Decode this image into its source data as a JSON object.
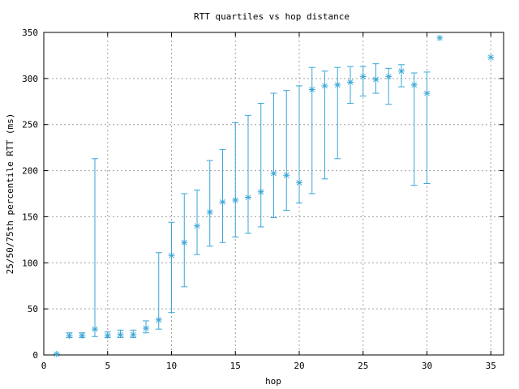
{
  "chart_data": {
    "type": "scatter",
    "title": "RTT quartiles vs hop distance",
    "xlabel": "hop",
    "ylabel": "25/50/75th percentile RTT (ms)",
    "xlim": [
      0,
      36
    ],
    "ylim": [
      0,
      350
    ],
    "xticks": [
      0,
      5,
      10,
      15,
      20,
      25,
      30,
      35
    ],
    "yticks": [
      0,
      50,
      100,
      150,
      200,
      250,
      300,
      350
    ],
    "grid": true,
    "color": "#3ba6d6",
    "series": [
      {
        "points": [
          {
            "x": 1,
            "median": 1,
            "p25": 1,
            "p75": 1
          },
          {
            "x": 2,
            "median": 21,
            "p25": 19,
            "p75": 24
          },
          {
            "x": 3,
            "median": 21,
            "p25": 19,
            "p75": 24
          },
          {
            "x": 4,
            "median": 28,
            "p25": 20,
            "p75": 213
          },
          {
            "x": 5,
            "median": 21,
            "p25": 19,
            "p75": 25
          },
          {
            "x": 6,
            "median": 22,
            "p25": 19,
            "p75": 27
          },
          {
            "x": 7,
            "median": 22,
            "p25": 19,
            "p75": 27
          },
          {
            "x": 8,
            "median": 29,
            "p25": 24,
            "p75": 37
          },
          {
            "x": 9,
            "median": 38,
            "p25": 28,
            "p75": 111
          },
          {
            "x": 10,
            "median": 108,
            "p25": 46,
            "p75": 144
          },
          {
            "x": 11,
            "median": 122,
            "p25": 74,
            "p75": 175
          },
          {
            "x": 12,
            "median": 140,
            "p25": 109,
            "p75": 179
          },
          {
            "x": 13,
            "median": 155,
            "p25": 118,
            "p75": 211
          },
          {
            "x": 14,
            "median": 166,
            "p25": 122,
            "p75": 223
          },
          {
            "x": 15,
            "median": 168,
            "p25": 128,
            "p75": 252
          },
          {
            "x": 16,
            "median": 171,
            "p25": 132,
            "p75": 260
          },
          {
            "x": 17,
            "median": 177,
            "p25": 139,
            "p75": 273
          },
          {
            "x": 18,
            "median": 197,
            "p25": 149,
            "p75": 284
          },
          {
            "x": 19,
            "median": 195,
            "p25": 157,
            "p75": 287
          },
          {
            "x": 20,
            "median": 187,
            "p25": 165,
            "p75": 292
          },
          {
            "x": 21,
            "median": 288,
            "p25": 175,
            "p75": 312
          },
          {
            "x": 22,
            "median": 292,
            "p25": 191,
            "p75": 308
          },
          {
            "x": 23,
            "median": 293,
            "p25": 213,
            "p75": 312
          },
          {
            "x": 24,
            "median": 296,
            "p25": 273,
            "p75": 313
          },
          {
            "x": 25,
            "median": 302,
            "p25": 281,
            "p75": 313
          },
          {
            "x": 26,
            "median": 299,
            "p25": 284,
            "p75": 316
          },
          {
            "x": 27,
            "median": 302,
            "p25": 272,
            "p75": 311
          },
          {
            "x": 28,
            "median": 308,
            "p25": 291,
            "p75": 315
          },
          {
            "x": 29,
            "median": 293,
            "p25": 184,
            "p75": 306
          },
          {
            "x": 30,
            "median": 284,
            "p25": 186,
            "p75": 307
          },
          {
            "x": 31,
            "median": 344,
            "p25": 344,
            "p75": 344
          },
          {
            "x": 35,
            "median": 323,
            "p25": 323,
            "p75": 323
          }
        ]
      }
    ]
  }
}
